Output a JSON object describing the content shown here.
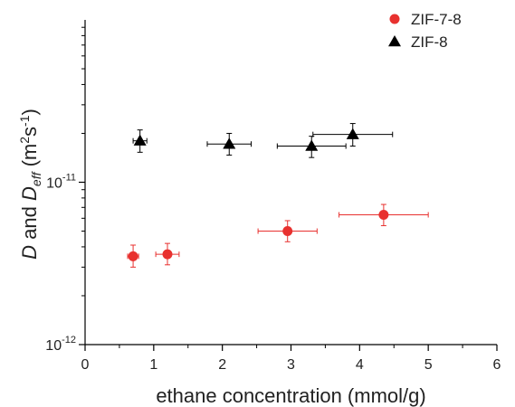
{
  "chart_data": {
    "type": "scatter",
    "xlabel": "ethane concentration (mmol/g)",
    "ylabel": {
      "part1": "D",
      "part2": " and ",
      "part3": "D",
      "part3_sub": "eff",
      "part4": " (m",
      "part4_sup": "2",
      "part5": "s",
      "part5_sup": "-1",
      "part6": ")"
    },
    "xlim": [
      0,
      6
    ],
    "ylim": [
      1e-12,
      1e-10
    ],
    "yscale": "log",
    "x_ticks": [
      0,
      1,
      2,
      3,
      4,
      5,
      6
    ],
    "x_tick_labels": [
      "0",
      "1",
      "2",
      "3",
      "4",
      "5",
      "6"
    ],
    "y_major_ticks": [
      {
        "value": 1e-12,
        "base": "10",
        "exp": "-12"
      },
      {
        "value": 1e-11,
        "base": "10",
        "exp": "-11"
      }
    ],
    "legend_position": "top-right",
    "grid": false,
    "series": [
      {
        "name": "ZIF-7-8",
        "marker": "circle",
        "color": "#e8312f",
        "points": [
          {
            "x": 0.7,
            "y": 3.5e-12,
            "xerr": 0.08,
            "yerr_low": 3e-12,
            "yerr_high": 4.1e-12
          },
          {
            "x": 1.2,
            "y": 3.6e-12,
            "xerr": 0.17,
            "yerr_low": 3.1e-12,
            "yerr_high": 4.2e-12
          },
          {
            "x": 2.95,
            "y": 5e-12,
            "xerr": 0.43,
            "yerr_low": 4.3e-12,
            "yerr_high": 5.8e-12
          },
          {
            "x": 4.35,
            "y": 6.3e-12,
            "xerr": 0.65,
            "yerr_low": 5.4e-12,
            "yerr_high": 7.3e-12
          }
        ]
      },
      {
        "name": "ZIF-8",
        "marker": "triangle",
        "color": "#000000",
        "points": [
          {
            "x": 0.8,
            "y": 1.8e-11,
            "xerr": 0.1,
            "yerr_low": 1.53e-11,
            "yerr_high": 2.1e-11
          },
          {
            "x": 2.1,
            "y": 1.72e-11,
            "xerr": 0.32,
            "yerr_low": 1.47e-11,
            "yerr_high": 2e-11
          },
          {
            "x": 3.3,
            "y": 1.67e-11,
            "xerr": 0.5,
            "yerr_low": 1.42e-11,
            "yerr_high": 1.92e-11
          },
          {
            "x": 3.9,
            "y": 1.97e-11,
            "xerr": 0.58,
            "yerr_low": 1.67e-11,
            "yerr_high": 2.3e-11
          }
        ]
      }
    ]
  }
}
